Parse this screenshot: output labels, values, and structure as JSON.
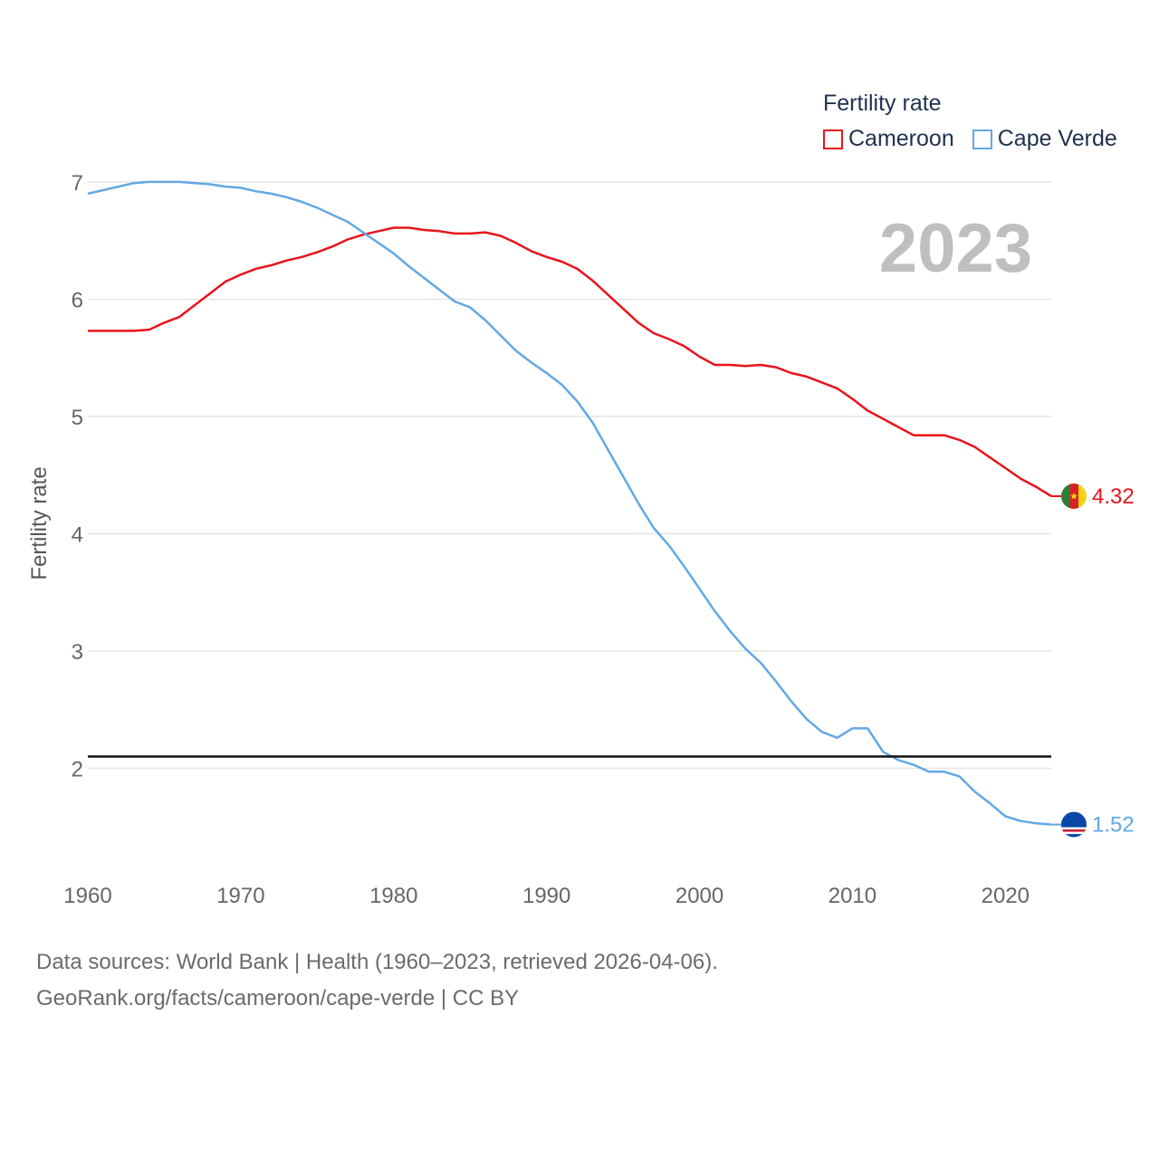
{
  "legend": {
    "title": "Fertility rate",
    "items": [
      {
        "label": "Cameroon",
        "color": "#e8141b"
      },
      {
        "label": "Cape Verde",
        "color": "#62a8e5"
      }
    ]
  },
  "year_label": "2023",
  "footer": {
    "line1": "Data sources: World Bank | Health (1960–2023, retrieved 2026-04-06).",
    "line2": "GeoRank.org/facts/cameroon/cape-verde | CC BY"
  },
  "chart_data": {
    "type": "line",
    "title": "Fertility rate",
    "xlabel": "",
    "ylabel": "Fertility rate",
    "xlim": [
      1960,
      2023
    ],
    "ylim": [
      1.1,
      7.1
    ],
    "xticks": [
      1960,
      1970,
      1980,
      1990,
      2000,
      2010,
      2020
    ],
    "yticks": [
      2,
      3,
      4,
      5,
      6,
      7
    ],
    "reference_line": 2.1,
    "x": [
      1960,
      1961,
      1962,
      1963,
      1964,
      1965,
      1966,
      1967,
      1968,
      1969,
      1970,
      1971,
      1972,
      1973,
      1974,
      1975,
      1976,
      1977,
      1978,
      1979,
      1980,
      1981,
      1982,
      1983,
      1984,
      1985,
      1986,
      1987,
      1988,
      1989,
      1990,
      1991,
      1992,
      1993,
      1994,
      1995,
      1996,
      1997,
      1998,
      1999,
      2000,
      2001,
      2002,
      2003,
      2004,
      2005,
      2006,
      2007,
      2008,
      2009,
      2010,
      2011,
      2012,
      2013,
      2014,
      2015,
      2016,
      2017,
      2018,
      2019,
      2020,
      2021,
      2022,
      2023
    ],
    "series": [
      {
        "name": "Cameroon",
        "color": "#e8141b",
        "end_label": "4.32",
        "values": [
          5.73,
          5.73,
          5.73,
          5.73,
          5.74,
          5.8,
          5.85,
          5.95,
          6.05,
          6.15,
          6.21,
          6.26,
          6.29,
          6.33,
          6.36,
          6.4,
          6.45,
          6.51,
          6.55,
          6.58,
          6.61,
          6.61,
          6.59,
          6.58,
          6.56,
          6.56,
          6.57,
          6.54,
          6.48,
          6.41,
          6.36,
          6.32,
          6.26,
          6.16,
          6.04,
          5.92,
          5.8,
          5.71,
          5.66,
          5.6,
          5.51,
          5.44,
          5.44,
          5.43,
          5.44,
          5.42,
          5.37,
          5.34,
          5.29,
          5.24,
          5.15,
          5.05,
          4.98,
          4.91,
          4.84,
          4.84,
          4.84,
          4.8,
          4.74,
          4.65,
          4.56,
          4.47,
          4.4,
          4.32
        ]
      },
      {
        "name": "Cape Verde",
        "color": "#62a8e5",
        "end_label": "1.52",
        "values": [
          6.9,
          6.93,
          6.96,
          6.99,
          7.0,
          7.0,
          7.0,
          6.99,
          6.98,
          6.96,
          6.95,
          6.92,
          6.9,
          6.87,
          6.83,
          6.78,
          6.72,
          6.66,
          6.57,
          6.48,
          6.39,
          6.28,
          6.18,
          6.08,
          5.98,
          5.93,
          5.82,
          5.69,
          5.56,
          5.46,
          5.37,
          5.27,
          5.13,
          4.95,
          4.72,
          4.49,
          4.26,
          4.05,
          3.9,
          3.72,
          3.53,
          3.34,
          3.17,
          3.02,
          2.9,
          2.74,
          2.57,
          2.42,
          2.31,
          2.26,
          2.34,
          2.34,
          2.14,
          2.07,
          2.03,
          1.97,
          1.97,
          1.93,
          1.8,
          1.7,
          1.59,
          1.55,
          1.53,
          1.52
        ]
      }
    ]
  }
}
